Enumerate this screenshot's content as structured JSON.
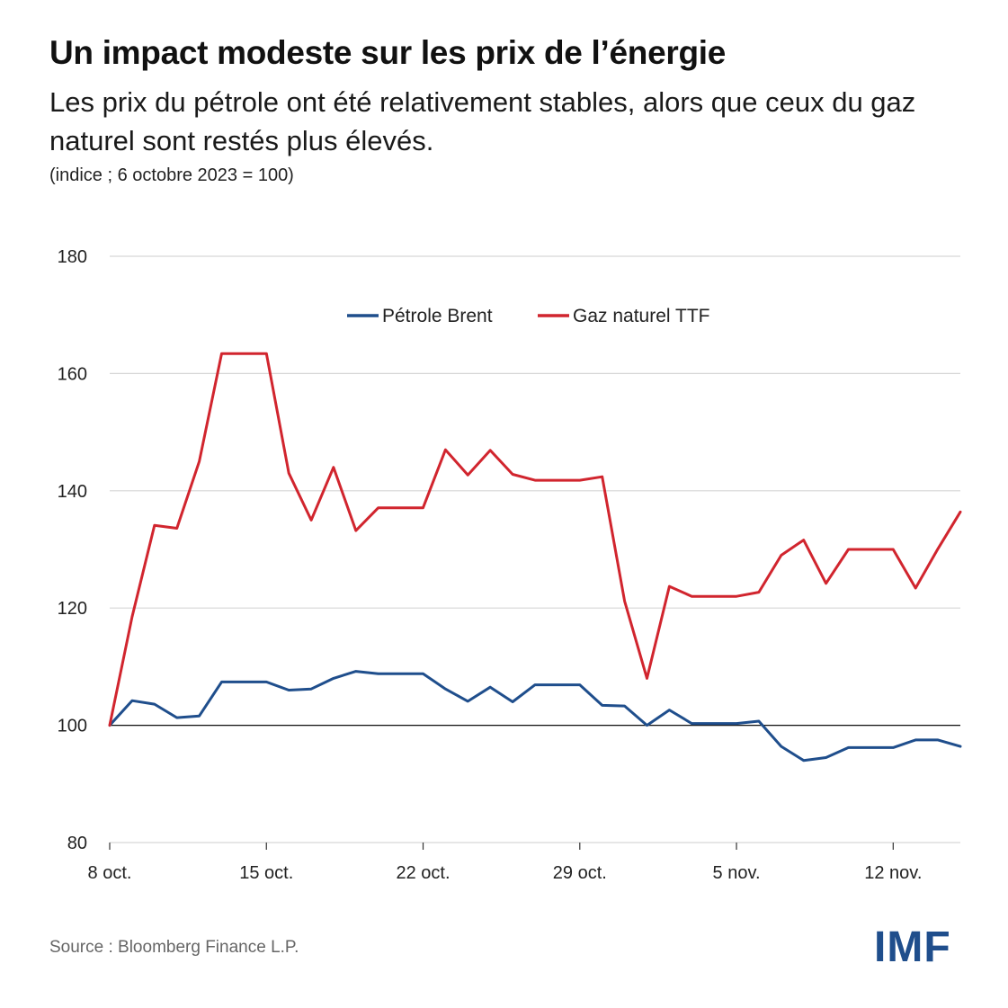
{
  "title": "Un impact modeste sur les prix de l’énergie",
  "subtitle": "Les prix du pétrole ont été relativement stables, alors que ceux du gaz naturel sont restés plus élevés.",
  "unit_note": "(indice ; 6 octobre 2023 = 100)",
  "source": "Source : Bloomberg Finance L.P.",
  "logo": "IMF",
  "colors": {
    "brent": "#1f4e8c",
    "ttf": "#d1252e",
    "grid": "#d6d6d6",
    "baseline": "#111111",
    "logo": "#1f4e8c"
  },
  "chart_data": {
    "type": "line",
    "title": "Un impact modeste sur les prix de l’énergie",
    "xlabel": "",
    "ylabel": "(indice ; 6 octobre 2023 = 100)",
    "ylim": [
      80,
      180
    ],
    "yticks": [
      80,
      100,
      120,
      140,
      160,
      180
    ],
    "baseline": 100,
    "grid": true,
    "legend_position": "top-center",
    "x": [
      0,
      1,
      2,
      3,
      4,
      5,
      6,
      7,
      8,
      9,
      10,
      11,
      12,
      13,
      14,
      15,
      16,
      17,
      18,
      19,
      20,
      21,
      22,
      23,
      24,
      25,
      26,
      27,
      28,
      29,
      30,
      31,
      32,
      33,
      34,
      35,
      36,
      37,
      38
    ],
    "xlim": [
      0,
      38
    ],
    "xticks": [
      {
        "pos": 0,
        "label": "8 oct."
      },
      {
        "pos": 7,
        "label": "15 oct."
      },
      {
        "pos": 14,
        "label": "22 oct."
      },
      {
        "pos": 21,
        "label": "29 oct."
      },
      {
        "pos": 28,
        "label": "5 nov."
      },
      {
        "pos": 35,
        "label": "12 nov."
      }
    ],
    "series": [
      {
        "name": "Pétrole Brent",
        "color": "#1f4e8c",
        "values": [
          100,
          104.2,
          103.6,
          101.3,
          101.6,
          107.4,
          107.4,
          107.4,
          106.0,
          106.2,
          108.0,
          109.2,
          108.8,
          108.8,
          108.8,
          106.2,
          104.1,
          106.5,
          104.0,
          106.9,
          106.9,
          106.9,
          103.4,
          103.3,
          100.0,
          102.6,
          100.3,
          100.3,
          100.3,
          100.7,
          96.4,
          94.0,
          94.5,
          96.2,
          96.2,
          96.2,
          97.5,
          97.5,
          96.4
        ]
      },
      {
        "name": "Gaz naturel TTF",
        "color": "#d1252e",
        "values": [
          100,
          118.5,
          134.1,
          133.6,
          145.0,
          163.4,
          163.4,
          163.4,
          143.0,
          135.0,
          144.0,
          133.2,
          137.1,
          137.1,
          137.1,
          147.0,
          142.7,
          146.9,
          142.8,
          141.8,
          141.8,
          141.8,
          142.4,
          121.2,
          108.0,
          123.7,
          122.0,
          122.0,
          122.0,
          122.7,
          129.0,
          131.6,
          124.2,
          130.0,
          130.0,
          130.0,
          123.4,
          130.1,
          136.4
        ]
      }
    ]
  }
}
